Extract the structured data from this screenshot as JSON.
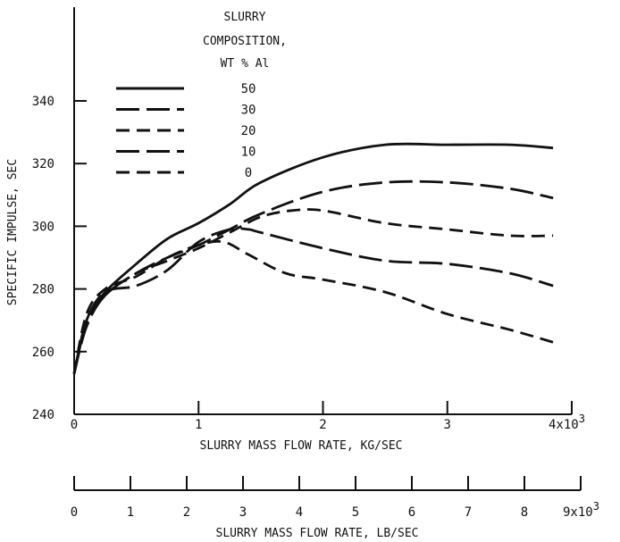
{
  "chart_data": {
    "type": "line",
    "title": "",
    "xlabel": "SLURRY MASS FLOW RATE, KG/SEC",
    "x2label": "SLURRY MASS FLOW RATE, LB/SEC",
    "ylabel": "SPECIFIC IMPULSE, SEC",
    "xlim": [
      0,
      4000
    ],
    "ylim": [
      240,
      350
    ],
    "x_ticks": [
      0,
      1000,
      2000,
      3000,
      4000
    ],
    "x_tick_labels": [
      "0",
      "1",
      "2",
      "3",
      "4x10"
    ],
    "x_tick_exponent": "3",
    "x2_ticks": [
      0,
      1,
      2,
      3,
      4,
      5,
      6,
      7,
      8,
      9
    ],
    "x2_tick_labels": [
      "0",
      "1",
      "2",
      "3",
      "4",
      "5",
      "6",
      "7",
      "8",
      "9x10"
    ],
    "x2_tick_exponent": "3",
    "y_ticks": [
      240,
      260,
      280,
      300,
      320,
      340
    ],
    "y_tick_labels": [
      "240",
      "260",
      "280",
      "300",
      "320",
      "340"
    ],
    "grid": false,
    "legend": {
      "title_lines": [
        "SLURRY",
        "COMPOSITION,",
        "WT % Al"
      ],
      "placement": "top-left"
    },
    "series": [
      {
        "name": "50",
        "dash": "solid",
        "x": [
          0,
          100,
          250,
          500,
          750,
          1000,
          1250,
          1500,
          2000,
          2500,
          3000,
          3500,
          3850
        ],
        "y": [
          253,
          270,
          279,
          288,
          296,
          301,
          307,
          314,
          322,
          326,
          326,
          326,
          325
        ]
      },
      {
        "name": "30",
        "dash": "long",
        "x": [
          0,
          100,
          250,
          500,
          750,
          1000,
          1250,
          1500,
          2000,
          2500,
          3000,
          3500,
          3850
        ],
        "y": [
          253,
          268,
          278,
          285,
          290,
          294,
          299,
          304,
          311,
          314,
          314,
          312,
          309
        ]
      },
      {
        "name": "20",
        "dash": "medium",
        "x": [
          0,
          100,
          250,
          500,
          750,
          1000,
          1250,
          1500,
          1750,
          2000,
          2500,
          3000,
          3500,
          3850
        ],
        "y": [
          253,
          269,
          278,
          285,
          289,
          293,
          298,
          303,
          305,
          305,
          301,
          299,
          297,
          297
        ]
      },
      {
        "name": "10",
        "dash": "long",
        "x": [
          0,
          100,
          250,
          500,
          750,
          1000,
          1250,
          1400,
          1500,
          2000,
          2500,
          3000,
          3500,
          3850
        ],
        "y": [
          253,
          270,
          279,
          281,
          286,
          295,
          299,
          299,
          298,
          293,
          289,
          288,
          285,
          281
        ]
      },
      {
        "name": "0",
        "dash": "medium",
        "x": [
          0,
          100,
          250,
          500,
          750,
          1000,
          1200,
          1400,
          1700,
          2000,
          2500,
          3000,
          3500,
          3850
        ],
        "y": [
          253,
          272,
          280,
          284,
          290,
          294,
          295,
          291,
          285,
          283,
          279,
          272,
          267,
          263
        ]
      }
    ]
  }
}
